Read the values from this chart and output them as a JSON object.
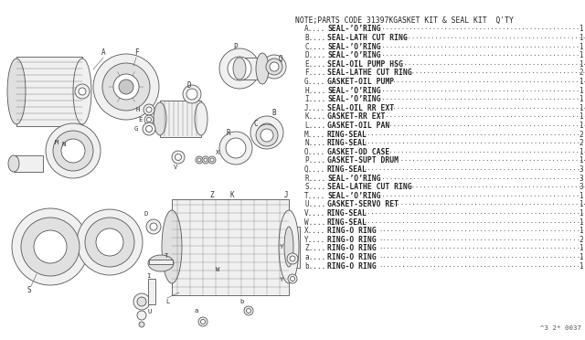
{
  "title": "NOTE;PARTS CODE 31397KGASKET KIT & SEAL KIT  Q'TY",
  "parts": [
    [
      "A",
      "SEAL-’O’RING",
      ".....",
      "1"
    ],
    [
      "B",
      "SEAL-LATH CUT RING",
      ".....",
      "1"
    ],
    [
      "C",
      "SEAL-’O’RING",
      ".....",
      "1"
    ],
    [
      "D",
      "SEAL-’O’RING",
      ".....",
      "1"
    ],
    [
      "E",
      "SEAL-OIL PUMP HSG",
      ".....",
      "1"
    ],
    [
      "F",
      "SEAL-LATHE CUT RING",
      ".....",
      "2"
    ],
    [
      "G",
      "GASKET-OIL PUMP",
      ".....",
      "1"
    ],
    [
      "H",
      "SEAL-’O’RING",
      ".....",
      "1"
    ],
    [
      "I",
      "SEAL-’O’RING",
      ".....",
      "1"
    ],
    [
      "J",
      "SEAL-OIL RR EXT",
      ".....",
      "1"
    ],
    [
      "K",
      "GASKET-RR EXT",
      ".....",
      "1"
    ],
    [
      "L",
      "GASKET-OIL PAN",
      ".....",
      "1"
    ],
    [
      "M",
      "RING-SEAL",
      ".....",
      "2"
    ],
    [
      "N",
      "RING-SEAL",
      ".....",
      "2"
    ],
    [
      "O",
      "GASKET-OD CASE",
      ".....",
      "1"
    ],
    [
      "P",
      "GASKET-SUPT DRUM",
      ".....",
      "1"
    ],
    [
      "Q",
      "RING-SEAL",
      ".....",
      "3"
    ],
    [
      "R",
      "SEAL-’O’RING",
      ".....",
      "3"
    ],
    [
      "S",
      "SEAL-LATHE CUT RING",
      ".....",
      "3"
    ],
    [
      "T",
      "SEAL-’O’RING",
      ".....",
      "1"
    ],
    [
      "U",
      "GASKET-SERVO RET",
      ".....",
      "1"
    ],
    [
      "V",
      "RING-SEAL",
      ".....",
      "1"
    ],
    [
      "W",
      "RING-SEAL",
      ".....",
      "1"
    ],
    [
      "X",
      "RING-O RING",
      ".....",
      "1"
    ],
    [
      "Y",
      "RING-O RING",
      ".....",
      "2"
    ],
    [
      "Z",
      "RING-O RING",
      ".....",
      "1"
    ],
    [
      "a",
      "RING-O RING",
      ".....",
      "1"
    ],
    [
      "b",
      "RING-O RING",
      ".....",
      "1"
    ]
  ],
  "footer": "^3 2* 0037",
  "bg_color": "#ffffff",
  "text_color": "#555555",
  "title_fontsize": 5.8,
  "parts_fontsize": 5.5,
  "label_fontsize": 5.5
}
